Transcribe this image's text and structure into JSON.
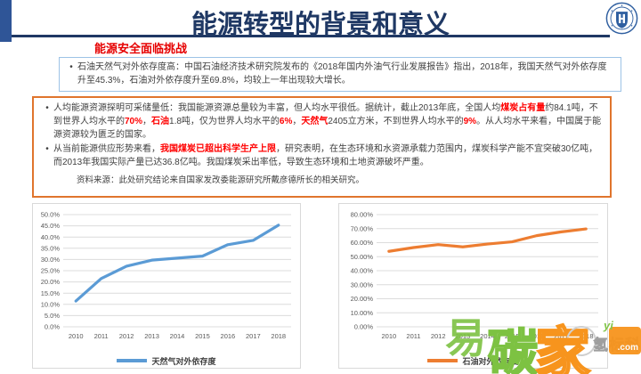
{
  "header": {
    "title": "能源转型的背景和意义",
    "logo_name": "university-emblem",
    "accent_color": "#1F3864"
  },
  "subtitle": {
    "text": "能源安全面临挑战",
    "color": "#E60000"
  },
  "box1": {
    "border_color": "#9DC3E6",
    "bullet": "•",
    "segments": [
      {
        "style": "normal",
        "text": "石油天然气对外依存度高：中国石油经济技术研究院发布的《2018年国内外油气行业发展报告》指出，2018年，我国天然气对外依存度升至45.3%，石油对外依存度升至69.8%，均较上一年出现较大增长。"
      }
    ]
  },
  "box2": {
    "border_color": "#E0752D",
    "bullet": "•",
    "bullet1_segments": [
      {
        "style": "normal",
        "text": "人均能源资源探明可采储量低：我国能源资源总量较为丰富，但人均水平很低。据统计，截止2013年底，全国人均"
      },
      {
        "style": "red",
        "text": "煤炭占有量"
      },
      {
        "style": "normal",
        "text": "约84.1吨，不到世界人均水平的"
      },
      {
        "style": "red",
        "text": "70%"
      },
      {
        "style": "normal",
        "text": "，"
      },
      {
        "style": "red",
        "text": "石油"
      },
      {
        "style": "normal",
        "text": "1.8吨，仅为世界人均水平的"
      },
      {
        "style": "red",
        "text": "6%"
      },
      {
        "style": "normal",
        "text": "，"
      },
      {
        "style": "red",
        "text": "天然气"
      },
      {
        "style": "normal",
        "text": "2405立方米，不到世界人均水平的"
      },
      {
        "style": "red",
        "text": "9%"
      },
      {
        "style": "normal",
        "text": "。从人均水平来看，中国属于能源资源较为匮乏的国家。"
      }
    ],
    "bullet2_segments": [
      {
        "style": "normal",
        "text": "从当前能源供应形势来看，"
      },
      {
        "style": "red",
        "text": "我国煤炭已超出科学生产上限"
      },
      {
        "style": "normal",
        "text": "，研究表明，在生态环境和水资源承载力范围内，煤炭科学产能不宜突破30亿吨，而2013年我国实际产量已达36.8亿吨。我国煤炭采出率低，导致生态环境和土地资源破坏严重。"
      }
    ],
    "source_note": "资料来源：此处研究结论来自国家发改委能源研究所戴彦德所长的相关研究。"
  },
  "chart_data": [
    {
      "type": "line",
      "title": "",
      "categories": [
        "2010",
        "2011",
        "2012",
        "2013",
        "2014",
        "2015",
        "2016",
        "2017",
        "2018"
      ],
      "series": [
        {
          "name": "天然气对外依存度",
          "values": [
            11.5,
            21.5,
            27.0,
            29.7,
            30.6,
            31.5,
            36.6,
            38.5,
            45.3
          ]
        }
      ],
      "color": "#5B9BD5",
      "ylim": [
        0,
        50
      ],
      "ytick_step": 5,
      "tick_decimals": 1,
      "tick_suffix": "%",
      "grid": true,
      "legend_position": "bottom"
    },
    {
      "type": "line",
      "title": "",
      "categories": [
        "2010",
        "2011",
        "2012",
        "2013",
        "2014",
        "2015",
        "2016",
        "2017",
        "2018"
      ],
      "series": [
        {
          "name": "石油对外依存度",
          "values": [
            53.8,
            56.5,
            58.6,
            57.0,
            59.0,
            60.6,
            65.0,
            67.7,
            69.8
          ]
        }
      ],
      "color": "#ED7D31",
      "ylim": [
        0,
        80
      ],
      "ytick_step": 10,
      "tick_decimals": 2,
      "tick_suffix": "%",
      "grid": true,
      "legend_position": "bottom"
    }
  ],
  "watermark": {
    "char_e": "易",
    "char_tan": "碳",
    "char_jia": "家",
    "gray_text": "氢标科技",
    "box_top_text": "yi",
    "box_bottom_text": ".com",
    "green": "#7DC242",
    "orange": "#F7941D"
  }
}
